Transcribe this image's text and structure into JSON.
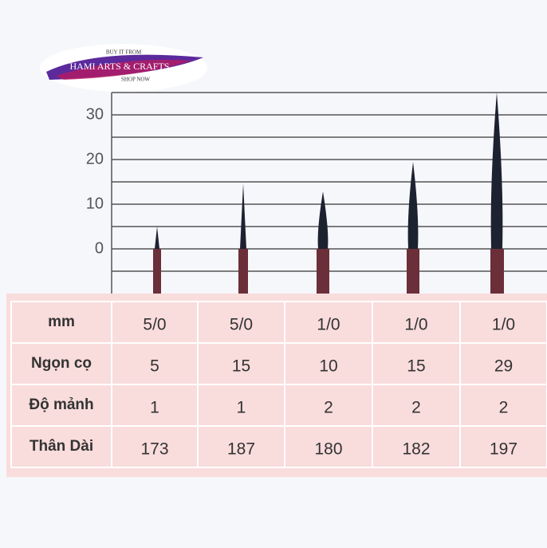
{
  "logo": {
    "top": "BUY IT FROM",
    "name": "HAMI ARTS & CRAFTS",
    "bottom": "SHOP NOW"
  },
  "axis": {
    "ticks": [
      0,
      10,
      20,
      30
    ]
  },
  "table": {
    "rows": [
      [
        "mm",
        "5/0",
        "5/0",
        "1/0",
        "1/0",
        "1/0"
      ],
      [
        "Ngọn cọ",
        "5",
        "15",
        "10",
        "15",
        "29"
      ],
      [
        "Độ mảnh",
        "1",
        "1",
        "2",
        "2",
        "2"
      ],
      [
        "Thân Dài",
        "173",
        "187",
        "180",
        "182",
        "197"
      ]
    ]
  }
}
